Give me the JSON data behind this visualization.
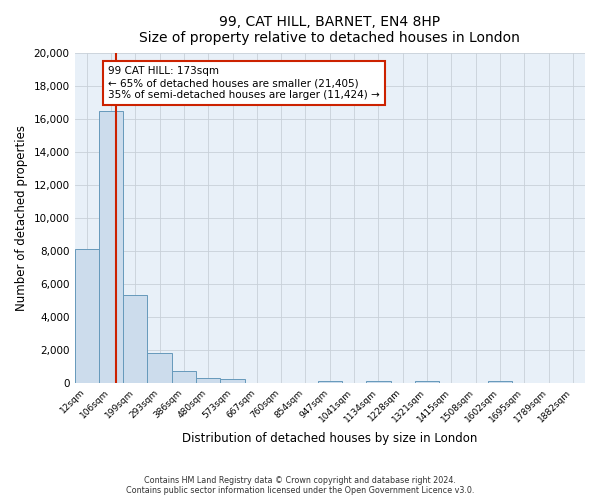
{
  "title": "99, CAT HILL, BARNET, EN4 8HP",
  "subtitle": "Size of property relative to detached houses in London",
  "xlabel": "Distribution of detached houses by size in London",
  "ylabel": "Number of detached properties",
  "bar_color": "#ccdcec",
  "bar_edge_color": "#6699bb",
  "categories": [
    "12sqm",
    "106sqm",
    "199sqm",
    "293sqm",
    "386sqm",
    "480sqm",
    "573sqm",
    "667sqm",
    "760sqm",
    "854sqm",
    "947sqm",
    "1041sqm",
    "1134sqm",
    "1228sqm",
    "1321sqm",
    "1415sqm",
    "1508sqm",
    "1602sqm",
    "1695sqm",
    "1789sqm",
    "1882sqm"
  ],
  "values": [
    8100,
    16500,
    5300,
    1800,
    700,
    280,
    200,
    0,
    0,
    0,
    110,
    0,
    130,
    0,
    130,
    0,
    0,
    130,
    0,
    0,
    0
  ],
  "ylim": [
    0,
    20000
  ],
  "yticks": [
    0,
    2000,
    4000,
    6000,
    8000,
    10000,
    12000,
    14000,
    16000,
    18000,
    20000
  ],
  "vline_color": "#cc2200",
  "annotation_text_line1": "99 CAT HILL: 173sqm",
  "annotation_text_line2": "← 65% of detached houses are smaller (21,405)",
  "annotation_text_line3": "35% of semi-detached houses are larger (11,424) →",
  "footer1": "Contains HM Land Registry data © Crown copyright and database right 2024.",
  "footer2": "Contains public sector information licensed under the Open Government Licence v3.0.",
  "bg_color": "#ffffff",
  "plot_bg_color": "#e8f0f8",
  "grid_color": "#c8d0d8"
}
